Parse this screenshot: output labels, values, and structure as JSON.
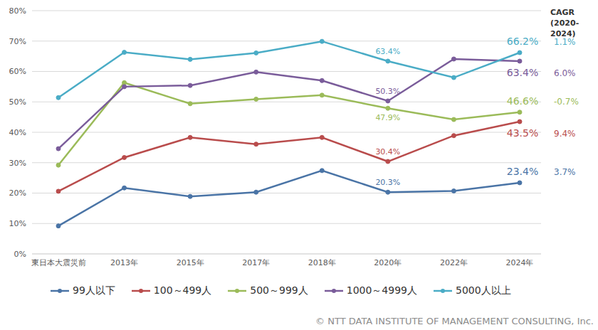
{
  "chart_data": {
    "type": "line",
    "categories": [
      "東日本大震災前",
      "2013年",
      "2015年",
      "2017年",
      "2018年",
      "2020年",
      "2022年",
      "2024年"
    ],
    "ylim": [
      0,
      80
    ],
    "yticks": [
      {
        "value": 0,
        "label": "0%"
      },
      {
        "value": 10,
        "label": "10%"
      },
      {
        "value": 20,
        "label": "20%"
      },
      {
        "value": 30,
        "label": "30%"
      },
      {
        "value": 40,
        "label": "40%"
      },
      {
        "value": 50,
        "label": "50%"
      },
      {
        "value": 60,
        "label": "60%"
      },
      {
        "value": 70,
        "label": "70%"
      },
      {
        "value": 80,
        "label": "80%"
      }
    ],
    "grid": true,
    "marker": "circle",
    "data_labels": true,
    "cagr_title": [
      "CAGR",
      "(2020-2024)"
    ],
    "source": "© NTT DATA INSTITUTE OF MANAGEMENT CONSULTING, Inc.",
    "series": [
      {
        "name": "99人以下",
        "color": "#4a74a6",
        "values": [
          9.2,
          21.7,
          18.9,
          20.3,
          27.4,
          20.3,
          20.7,
          23.4
        ],
        "value_labels": [
          null,
          null,
          null,
          null,
          null,
          "20.3%",
          null,
          "23.4%"
        ],
        "cagr": "3.7%"
      },
      {
        "name": "100～499人",
        "color": "#b94c4c",
        "values": [
          20.6,
          31.7,
          38.3,
          36.1,
          38.3,
          30.4,
          38.9,
          43.5
        ],
        "value_labels": [
          null,
          null,
          null,
          null,
          null,
          "30.4%",
          null,
          "43.5%"
        ],
        "cagr": "9.4%"
      },
      {
        "name": "500～999人",
        "color": "#9bbb59",
        "values": [
          29.2,
          56.3,
          49.4,
          50.9,
          52.2,
          47.9,
          44.2,
          46.6
        ],
        "value_labels": [
          null,
          null,
          null,
          null,
          null,
          "47.9%",
          null,
          "46.6%"
        ],
        "cagr": "-0.7%"
      },
      {
        "name": "1000～4999人",
        "color": "#7a5c9a",
        "values": [
          34.6,
          55.0,
          55.4,
          59.8,
          57.0,
          50.3,
          64.1,
          63.4
        ],
        "value_labels": [
          null,
          null,
          null,
          null,
          null,
          "50.3%",
          null,
          "63.4%"
        ],
        "cagr": "6.0%"
      },
      {
        "name": "5000人以上",
        "color": "#4aacc6",
        "values": [
          51.4,
          66.3,
          64.0,
          66.1,
          69.9,
          63.4,
          58.0,
          66.2
        ],
        "value_labels": [
          null,
          null,
          null,
          null,
          null,
          "63.4%",
          null,
          "66.2%"
        ],
        "cagr": "1.1%"
      }
    ]
  }
}
